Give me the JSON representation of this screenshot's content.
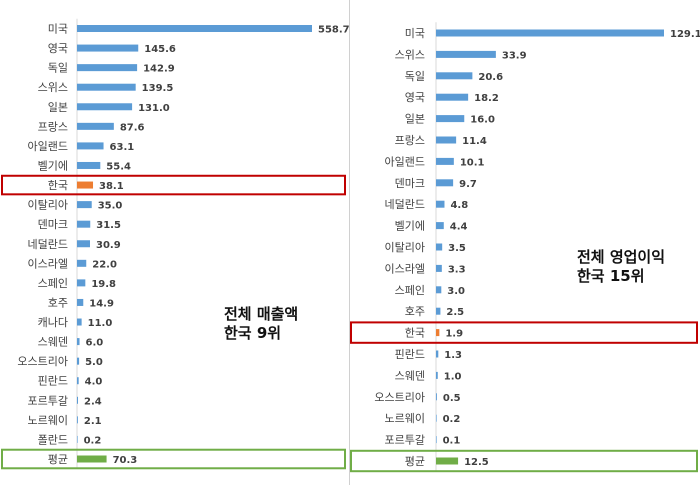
{
  "colors": {
    "bar": "#5b9bd5",
    "highlight_bar": "#ed7d31",
    "average_bar": "#70ad47",
    "highlight_box": "#c00000",
    "average_box": "#70ad47",
    "axis": "#d9d9d9"
  },
  "annotations": {
    "left_line1": "전체 매출액",
    "left_line2": "한국 9위",
    "right_line1": "전체 영업이익",
    "right_line2": "한국 15위"
  },
  "chart_data": [
    {
      "type": "bar",
      "orientation": "horizontal",
      "title": "",
      "categories": [
        "미국",
        "영국",
        "독일",
        "스위스",
        "일본",
        "프랑스",
        "아일랜드",
        "벨기에",
        "한국",
        "이탈리아",
        "덴마크",
        "네덜란드",
        "이스라엘",
        "스페인",
        "호주",
        "캐나다",
        "스웨덴",
        "오스트리아",
        "핀란드",
        "포르투갈",
        "노르웨이",
        "폴란드",
        "평균"
      ],
      "values": [
        558.7,
        145.6,
        142.9,
        139.5,
        131.0,
        87.6,
        63.1,
        55.4,
        38.1,
        35.0,
        31.5,
        30.9,
        22.0,
        19.8,
        14.9,
        11.0,
        6.0,
        5.0,
        4.0,
        2.4,
        2.1,
        0.2,
        70.3
      ],
      "value_labels": [
        "558.7",
        "145.6",
        "142.9",
        "139.5",
        "131.0",
        "87.6",
        "63.1",
        "55.4",
        "38.1",
        "35.0",
        "31.5",
        "30.9",
        "22.0",
        "19.8",
        "14.9",
        "11.0",
        "6.0",
        "5.0",
        "4.0",
        "2.4",
        "2.1",
        "0.2",
        "70.3"
      ],
      "highlight": "한국",
      "average": "평균",
      "xlim": [
        0,
        558.7
      ],
      "grid": false,
      "legend": "none"
    },
    {
      "type": "bar",
      "orientation": "horizontal",
      "title": "",
      "categories": [
        "미국",
        "스위스",
        "독일",
        "영국",
        "일본",
        "프랑스",
        "아일랜드",
        "덴마크",
        "네덜란드",
        "벨기에",
        "이탈리아",
        "이스라엘",
        "스페인",
        "호주",
        "한국",
        "핀란드",
        "스웨덴",
        "오스트리아",
        "노르웨이",
        "포르투갈",
        "평균"
      ],
      "values": [
        129.1,
        33.9,
        20.6,
        18.2,
        16.0,
        11.4,
        10.1,
        9.7,
        4.8,
        4.4,
        3.5,
        3.3,
        3.0,
        2.5,
        1.9,
        1.3,
        1.0,
        0.5,
        0.2,
        0.1,
        12.5
      ],
      "value_labels": [
        "129.1",
        "33.9",
        "20.6",
        "18.2",
        "16.0",
        "11.4",
        "10.1",
        "9.7",
        "4.8",
        "4.4",
        "3.5",
        "3.3",
        "3.0",
        "2.5",
        "1.9",
        "1.3",
        "1.0",
        "0.5",
        "0.2",
        "0.1",
        "12.5"
      ],
      "highlight": "한국",
      "average": "평균",
      "xlim": [
        0,
        129.1
      ],
      "grid": false,
      "legend": "none"
    }
  ]
}
